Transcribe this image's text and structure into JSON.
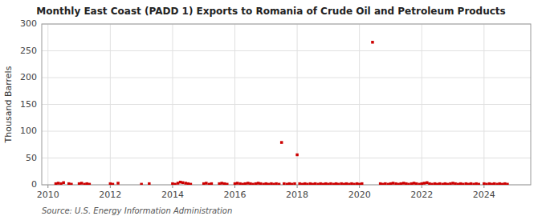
{
  "chart_data": {
    "type": "scatter",
    "title": "Monthly East Coast (PADD 1) Exports to Romania of Crude Oil and Petroleum Products",
    "ylabel": "Thousand Barrels",
    "annotations": [
      "Source: U.S. Energy Information Administration"
    ],
    "color": "#cc0000",
    "marker": "square",
    "grid": true,
    "xlim": [
      2009.8,
      2025.5
    ],
    "xticks": [
      2010,
      2012,
      2014,
      2016,
      2018,
      2020,
      2022,
      2024
    ],
    "ylim": [
      0,
      300
    ],
    "yticks": [
      0,
      50,
      100,
      150,
      200,
      250,
      300
    ],
    "x": [
      2010.25,
      2010.33,
      2010.42,
      2010.5,
      2010.67,
      2010.75,
      2011.0,
      2011.08,
      2011.17,
      2011.25,
      2011.33,
      2012.0,
      2012.08,
      2012.25,
      2013.0,
      2013.25,
      2014.0,
      2014.08,
      2014.17,
      2014.25,
      2014.33,
      2014.42,
      2014.5,
      2014.58,
      2015.0,
      2015.08,
      2015.17,
      2015.25,
      2015.5,
      2015.58,
      2015.67,
      2015.75,
      2016.0,
      2016.08,
      2016.17,
      2016.25,
      2016.33,
      2016.42,
      2016.5,
      2016.58,
      2016.67,
      2016.75,
      2016.83,
      2016.92,
      2017.0,
      2017.08,
      2017.17,
      2017.25,
      2017.33,
      2017.42,
      2017.5,
      2017.58,
      2017.67,
      2017.75,
      2017.83,
      2017.92,
      2018.0,
      2018.08,
      2018.17,
      2018.25,
      2018.33,
      2018.42,
      2018.5,
      2018.58,
      2018.67,
      2018.75,
      2018.83,
      2018.92,
      2019.0,
      2019.08,
      2019.17,
      2019.25,
      2019.33,
      2019.42,
      2019.5,
      2019.58,
      2019.67,
      2019.75,
      2019.83,
      2019.92,
      2020.0,
      2020.08,
      2020.42,
      2020.67,
      2020.75,
      2020.83,
      2020.92,
      2021.0,
      2021.08,
      2021.17,
      2021.25,
      2021.33,
      2021.42,
      2021.5,
      2021.58,
      2021.67,
      2021.75,
      2021.83,
      2021.92,
      2022.0,
      2022.08,
      2022.17,
      2022.25,
      2022.33,
      2022.42,
      2022.5,
      2022.58,
      2022.67,
      2022.75,
      2022.83,
      2022.92,
      2023.0,
      2023.08,
      2023.17,
      2023.25,
      2023.33,
      2023.42,
      2023.5,
      2023.58,
      2023.67,
      2023.75,
      2023.83,
      2024.0,
      2024.08,
      2024.17,
      2024.25,
      2024.33,
      2024.42,
      2024.5,
      2024.58,
      2024.67,
      2024.75
    ],
    "values": [
      2,
      3,
      2,
      4,
      2,
      1,
      2,
      3,
      1,
      2,
      1,
      2,
      1,
      3,
      1,
      2,
      2,
      1,
      3,
      5,
      4,
      3,
      2,
      1,
      2,
      3,
      1,
      2,
      2,
      3,
      2,
      1,
      2,
      3,
      2,
      1,
      2,
      3,
      2,
      1,
      2,
      3,
      2,
      1,
      2,
      1,
      2,
      1,
      2,
      1,
      79,
      2,
      1,
      2,
      1,
      2,
      56,
      2,
      1,
      2,
      1,
      2,
      1,
      2,
      1,
      2,
      1,
      2,
      1,
      2,
      1,
      2,
      1,
      2,
      1,
      2,
      1,
      2,
      1,
      2,
      1,
      2,
      266,
      2,
      1,
      2,
      1,
      2,
      3,
      2,
      1,
      2,
      3,
      2,
      1,
      2,
      3,
      2,
      1,
      2,
      3,
      4,
      2,
      1,
      2,
      1,
      2,
      1,
      2,
      1,
      2,
      3,
      2,
      1,
      2,
      1,
      2,
      1,
      2,
      1,
      2,
      1,
      2,
      1,
      2,
      1,
      2,
      1,
      2,
      1,
      2,
      1
    ]
  }
}
